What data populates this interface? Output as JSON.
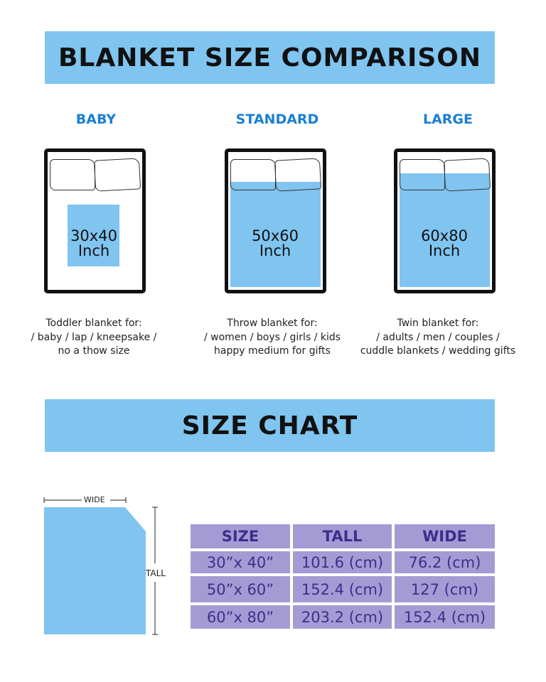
{
  "title": "BLANKET SIZE COMPARISON",
  "sizes": [
    {
      "label": "BABY",
      "size": "30x40",
      "unit": "Inch",
      "desc": [
        "Toddler blanket for:",
        "/ baby / lap / kneepsake /",
        "no a thow size"
      ]
    },
    {
      "label": "STANDARD",
      "size": "50x60",
      "unit": "Inch",
      "desc": [
        "Throw blanket for:",
        "/ women / boys / girls / kids",
        "happy medium for gifts"
      ]
    },
    {
      "label": "LARGE",
      "size": "60x80",
      "unit": "Inch",
      "desc": [
        "Twin blanket for:",
        "/ adults / men / couples /",
        "cuddle blankets / wedding gifts"
      ]
    }
  ],
  "chart_title": "SIZE CHART",
  "diagram": {
    "wide": "WIDE",
    "tall": "TALL"
  },
  "table": {
    "headers": [
      "SIZE",
      "TALL",
      "WIDE"
    ],
    "rows": [
      [
        "30”x 40”",
        "101.6 (cm)",
        "76.2 (cm)"
      ],
      [
        "50”x 60”",
        "152.4 (cm)",
        "127 (cm)"
      ],
      [
        "60”x 80”",
        "203.2 (cm)",
        "152.4 (cm)"
      ]
    ]
  },
  "colors": {
    "band": "#80c4f0",
    "category": "#1a7fd4",
    "table_cell": "#a59bd4",
    "table_text": "#3a2f8c"
  }
}
